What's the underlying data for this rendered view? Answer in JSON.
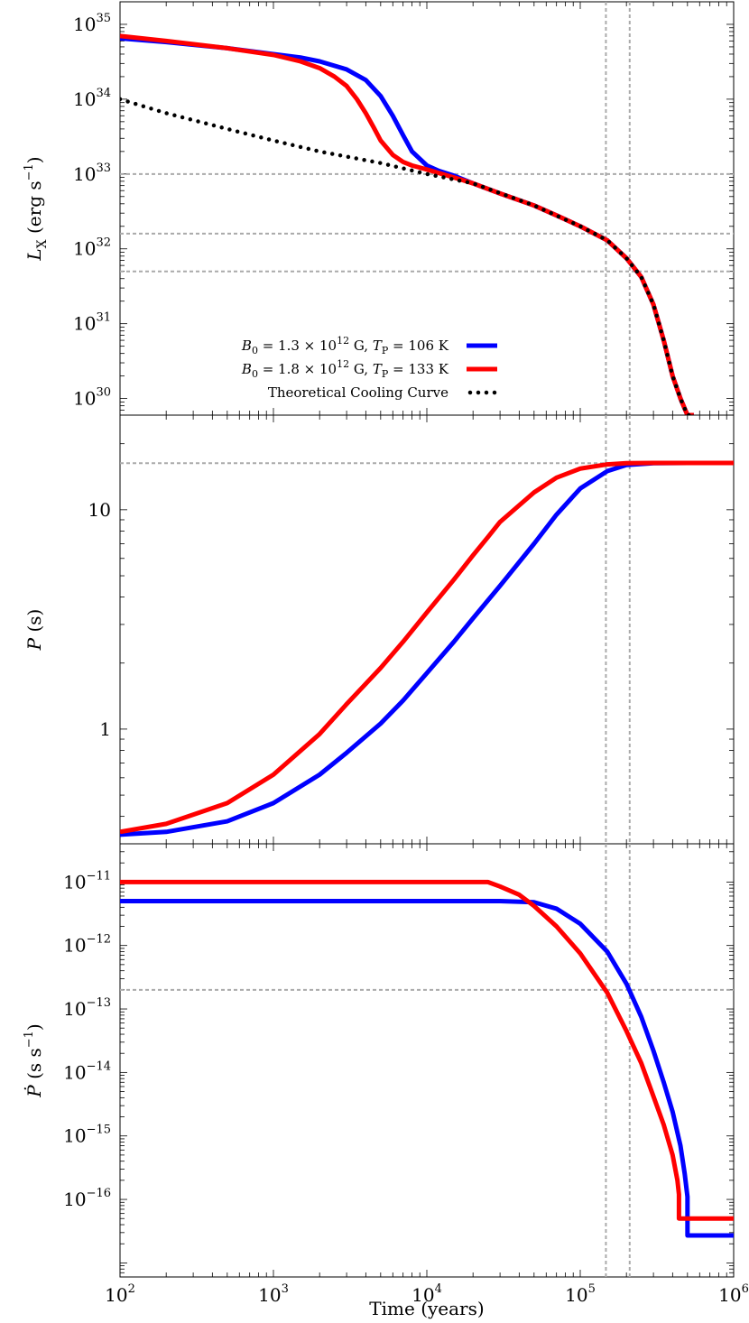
{
  "chart_data": [
    {
      "type": "line",
      "panel": "top",
      "ylabel": "L_X (erg s^-1)",
      "ylabel_parts": {
        "main": "L",
        "sub": "X",
        "unit_open": " (erg s",
        "unit_exp": "−1",
        "unit_close": ")"
      },
      "xscale": "log",
      "yscale": "log",
      "xlim": [
        100,
        1000000
      ],
      "ylim": [
        6e+29,
        2e+35
      ],
      "yticks": [
        {
          "value": 1e+30,
          "base": "10",
          "exp": "30"
        },
        {
          "value": 1e+31,
          "base": "10",
          "exp": "31"
        },
        {
          "value": 1e+32,
          "base": "10",
          "exp": "32"
        },
        {
          "value": 1e+33,
          "base": "10",
          "exp": "33"
        },
        {
          "value": 1e+34,
          "base": "10",
          "exp": "34"
        },
        {
          "value": 1e+35,
          "base": "10",
          "exp": "35"
        }
      ],
      "hlines": [
        1e+33,
        1.6e+32,
        5e+31
      ],
      "vlines": [
        147000,
        210000
      ],
      "legend_position": "bottom-left",
      "series": [
        {
          "name": "B0 = 1.3 × 10^12 G, TP = 106 K",
          "legend": {
            "b": "B",
            "bsub": "0",
            "val": " = 1.3 × 10",
            "exp": "12",
            "mid": " G, ",
            "t": "T",
            "tsub": "P",
            "end": " = 106 K"
          },
          "color": "#0000ff",
          "style": "solid",
          "x": [
            100,
            200,
            500,
            1000,
            1500,
            2000,
            3000,
            4000,
            5000,
            6000,
            7000,
            8000,
            10000,
            12000,
            15000,
            20000,
            30000,
            50000,
            70000,
            100000,
            150000,
            200000,
            250000,
            300000,
            350000,
            400000,
            450000,
            500000,
            550000
          ],
          "y": [
            6.5e+34,
            5.8e+34,
            4.8e+34,
            4e+34,
            3.6e+34,
            3.2e+34,
            2.5e+34,
            1.8e+34,
            1.1e+34,
            6e+33,
            3.3e+33,
            2e+33,
            1.3e+33,
            1.1e+33,
            9.5e+32,
            7.5e+32,
            5.5e+32,
            3.8e+32,
            2.8e+32,
            2e+32,
            1.3e+32,
            7.5e+31,
            4.2e+31,
            1.8e+31,
            6e+30,
            2e+30,
            1e+30,
            6e+29,
            6e+29
          ]
        },
        {
          "name": "B0 = 1.8 × 10^12 G, TP = 133 K",
          "legend": {
            "b": "B",
            "bsub": "0",
            "val": " = 1.8 × 10",
            "exp": "12",
            "mid": " G, ",
            "t": "T",
            "tsub": "P",
            "end": " = 133 K"
          },
          "color": "#ff0000",
          "style": "solid",
          "x": [
            100,
            200,
            500,
            1000,
            1500,
            2000,
            2500,
            3000,
            3500,
            4000,
            4500,
            5000,
            6000,
            7000,
            8000,
            10000,
            15000,
            20000,
            30000,
            50000,
            70000,
            100000,
            150000,
            200000,
            250000,
            300000,
            350000,
            400000,
            450000,
            500000,
            550000
          ],
          "y": [
            7e+34,
            6e+34,
            4.8e+34,
            3.9e+34,
            3.2e+34,
            2.6e+34,
            2e+34,
            1.5e+34,
            1e+34,
            6.5e+33,
            4.2e+33,
            2.8e+33,
            1.8e+33,
            1.45e+33,
            1.3e+33,
            1.15e+33,
            9e+32,
            7.5e+32,
            5.5e+32,
            3.8e+32,
            2.8e+32,
            2e+32,
            1.3e+32,
            7.5e+31,
            4.2e+31,
            1.8e+31,
            6e+30,
            2e+30,
            1e+30,
            6e+29,
            6e+29
          ]
        },
        {
          "name": "Theoretical Cooling Curve",
          "legend": {
            "text": "Theoretical Cooling Curve"
          },
          "color": "#000000",
          "style": "dotted",
          "x": [
            100,
            200,
            500,
            1000,
            2000,
            5000,
            10000,
            20000,
            50000,
            100000,
            150000,
            200000,
            250000,
            300000,
            350000,
            400000,
            450000,
            500000,
            550000
          ],
          "y": [
            1e+34,
            6.5e+33,
            4e+33,
            2.8e+33,
            2e+33,
            1.4e+33,
            1e+33,
            7.5e+32,
            3.8e+32,
            2e+32,
            1.3e+32,
            7.5e+31,
            4.2e+31,
            1.8e+31,
            6e+30,
            2e+30,
            1e+30,
            6e+29,
            6e+29
          ]
        }
      ]
    },
    {
      "type": "line",
      "panel": "middle",
      "ylabel": "P (s)",
      "ylabel_parts": {
        "main": "P",
        "unit": " (s)"
      },
      "xscale": "log",
      "yscale": "log",
      "xlim": [
        100,
        1000000
      ],
      "ylim": [
        0.3,
        27
      ],
      "yticks": [
        {
          "value": 1,
          "label": "1"
        },
        {
          "value": 10,
          "label": "10"
        }
      ],
      "hlines": [
        16.3
      ],
      "vlines": [
        147000,
        210000
      ],
      "series": [
        {
          "name": "B0 = 1.3 × 10^12 G, TP = 106 K",
          "color": "#0000ff",
          "style": "solid",
          "x": [
            100,
            200,
            500,
            1000,
            2000,
            3000,
            5000,
            7000,
            10000,
            15000,
            20000,
            30000,
            50000,
            70000,
            100000,
            150000,
            200000,
            300000,
            500000,
            1000000
          ],
          "y": [
            0.33,
            0.34,
            0.38,
            0.46,
            0.62,
            0.78,
            1.06,
            1.35,
            1.8,
            2.5,
            3.2,
            4.5,
            7.0,
            9.5,
            12.5,
            15.0,
            16.0,
            16.3,
            16.35,
            16.35
          ]
        },
        {
          "name": "B0 = 1.8 × 10^12 G, TP = 133 K",
          "color": "#ff0000",
          "style": "solid",
          "x": [
            100,
            200,
            500,
            1000,
            2000,
            3000,
            5000,
            7000,
            10000,
            15000,
            20000,
            25000,
            30000,
            50000,
            70000,
            100000,
            150000,
            200000,
            300000,
            500000,
            1000000
          ],
          "y": [
            0.34,
            0.37,
            0.46,
            0.62,
            0.95,
            1.3,
            1.9,
            2.5,
            3.4,
            4.8,
            6.2,
            7.5,
            8.8,
            12.0,
            14.0,
            15.4,
            16.1,
            16.3,
            16.35,
            16.35,
            16.35
          ]
        }
      ]
    },
    {
      "type": "line",
      "panel": "bottom",
      "xlabel": "Time (years)",
      "ylabel": "Ṗ (s s^-1)",
      "ylabel_parts": {
        "main": "Ṗ",
        "unit_open": " (s s",
        "unit_exp": "−1",
        "unit_close": ")"
      },
      "xscale": "log",
      "yscale": "log",
      "xlim": [
        100,
        1000000
      ],
      "ylim": [
        6e-18,
        4e-11
      ],
      "xticks": [
        {
          "value": 100,
          "base": "10",
          "exp": "2"
        },
        {
          "value": 1000,
          "base": "10",
          "exp": "3"
        },
        {
          "value": 10000,
          "base": "10",
          "exp": "4"
        },
        {
          "value": 100000,
          "base": "10",
          "exp": "5"
        },
        {
          "value": 1000000,
          "base": "10",
          "exp": "6"
        }
      ],
      "yticks": [
        {
          "value": 1e-16,
          "base": "10",
          "exp": "−16"
        },
        {
          "value": 1e-15,
          "base": "10",
          "exp": "−15"
        },
        {
          "value": 1e-14,
          "base": "10",
          "exp": "−14"
        },
        {
          "value": 1e-13,
          "base": "10",
          "exp": "−13"
        },
        {
          "value": 1e-12,
          "base": "10",
          "exp": "−12"
        },
        {
          "value": 1e-11,
          "base": "10",
          "exp": "−11"
        }
      ],
      "hlines": [
        2e-13
      ],
      "vlines": [
        147000,
        210000
      ],
      "series": [
        {
          "name": "B0 = 1.3 × 10^12 G, TP = 106 K",
          "color": "#0000ff",
          "style": "solid",
          "x": [
            100,
            1000,
            10000,
            30000,
            50000,
            70000,
            100000,
            150000,
            200000,
            250000,
            300000,
            350000,
            400000,
            450000,
            480000,
            500000,
            500001,
            1000000
          ],
          "y": [
            5e-12,
            5e-12,
            5e-12,
            5e-12,
            4.8e-12,
            3.8e-12,
            2.2e-12,
            8e-13,
            2.5e-13,
            7.5e-14,
            2.2e-14,
            7e-15,
            2.4e-15,
            7e-16,
            2.5e-16,
            1.1e-16,
            2.7e-17,
            2.7e-17
          ]
        },
        {
          "name": "B0 = 1.8 × 10^12 G, TP = 133 K",
          "color": "#ff0000",
          "style": "solid",
          "x": [
            100,
            1000,
            10000,
            25000,
            30000,
            40000,
            50000,
            70000,
            100000,
            150000,
            200000,
            250000,
            300000,
            350000,
            400000,
            430000,
            440000,
            440001,
            1000000
          ],
          "y": [
            1e-11,
            1e-11,
            1e-11,
            1e-11,
            8.5e-12,
            6.3e-12,
            4.2e-12,
            2e-12,
            7.5e-13,
            1.8e-13,
            4.5e-14,
            1.4e-14,
            4.2e-15,
            1.5e-15,
            5e-16,
            2e-16,
            1.2e-16,
            5e-17,
            5e-17
          ]
        }
      ]
    }
  ]
}
